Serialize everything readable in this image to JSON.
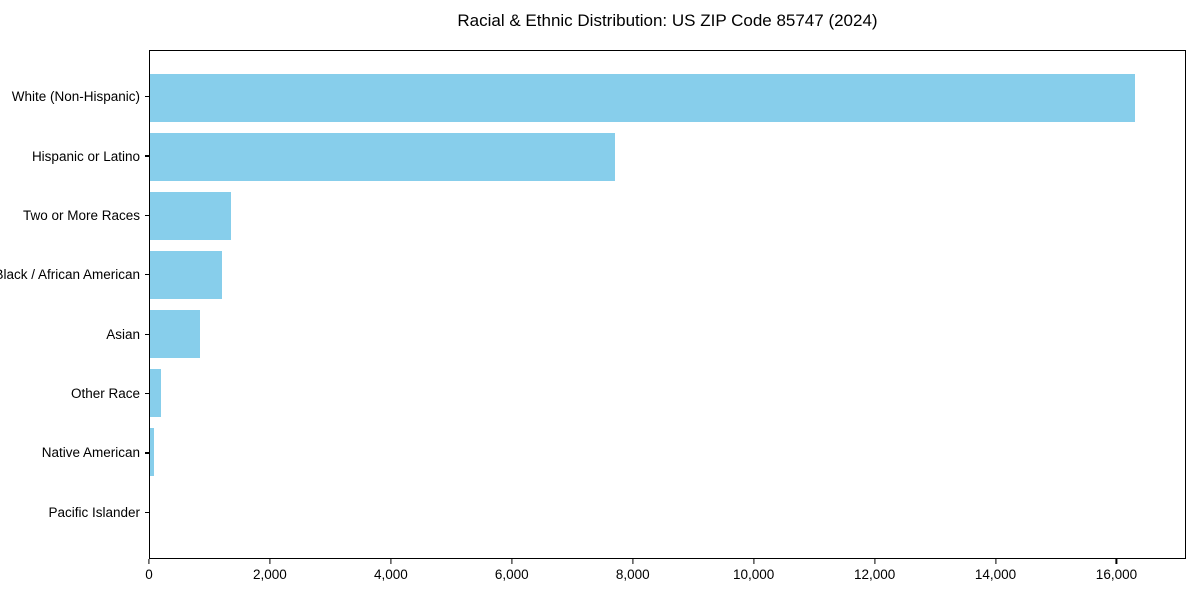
{
  "chart_data": {
    "type": "bar",
    "orientation": "horizontal",
    "title": "Racial & Ethnic Distribution: US ZIP Code 85747 (2024)",
    "categories": [
      "White (Non-Hispanic)",
      "Hispanic or Latino",
      "Two or More Races",
      "Black / African American",
      "Asian",
      "Other Race",
      "Native American",
      "Pacific Islander"
    ],
    "values": [
      16320,
      7700,
      1340,
      1190,
      830,
      190,
      70,
      0
    ],
    "xlabel": "",
    "ylabel": "",
    "xlim": [
      0,
      17150
    ],
    "x_ticks": [
      {
        "value": 0,
        "label": "0"
      },
      {
        "value": 2000,
        "label": "2,000"
      },
      {
        "value": 4000,
        "label": "4,000"
      },
      {
        "value": 6000,
        "label": "6,000"
      },
      {
        "value": 8000,
        "label": "8,000"
      },
      {
        "value": 10000,
        "label": "10,000"
      },
      {
        "value": 12000,
        "label": "12,000"
      },
      {
        "value": 14000,
        "label": "14,000"
      },
      {
        "value": 16000,
        "label": "16,000"
      }
    ],
    "bar_color": "#87CEEB",
    "axis_color": "#000000",
    "background_color": "#ffffff",
    "grid": false,
    "legend": null
  }
}
